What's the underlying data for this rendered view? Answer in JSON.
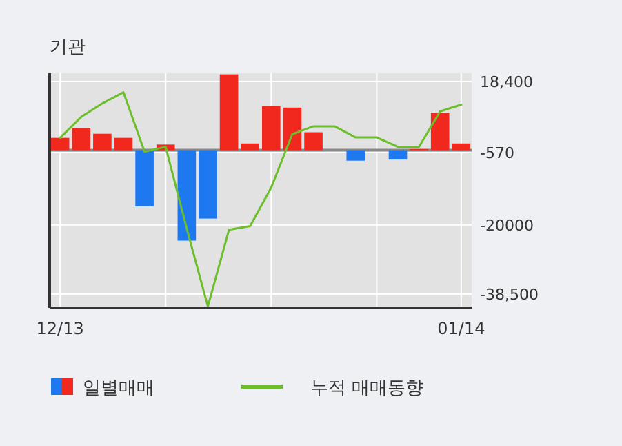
{
  "chart_data": {
    "type": "bar",
    "title": "기관",
    "categories": [
      "12/13",
      null,
      null,
      null,
      null,
      null,
      null,
      null,
      null,
      null,
      null,
      null,
      null,
      null,
      null,
      null,
      null,
      null,
      null,
      "01/14"
    ],
    "series": [
      {
        "name": "일별매매",
        "colors": [
          "#f0281e",
          "#f0281e",
          "#f0281e",
          "#f0281e",
          "#1e78f0",
          "#f0281e",
          "#1e78f0",
          "#1e78f0",
          "#f0281e",
          "#f0281e",
          "#f0281e",
          "#f0281e",
          "#f0281e",
          "#f0281e",
          "#1e78f0",
          "#f0281e",
          "#1e78f0",
          "#f0281e",
          "#f0281e",
          "#f0281e"
        ],
        "values": [
          3300,
          6000,
          4400,
          3300,
          -15000,
          1500,
          -24200,
          -18300,
          20300,
          1800,
          11800,
          11400,
          4800,
          0,
          -2800,
          0,
          -2500,
          300,
          10000,
          1800
        ]
      },
      {
        "name": "누적 매매동향",
        "type": "line",
        "color": "#6cbf2a",
        "values": [
          3300,
          8900,
          12500,
          15500,
          -400,
          900,
          -21000,
          -41800,
          -21300,
          -20300,
          -10000,
          4300,
          6400,
          6400,
          3400,
          3400,
          900,
          900,
          10400,
          12200
        ]
      }
    ],
    "ylim": [
      -42200,
      20600
    ],
    "yticks": [
      {
        "value": 18400,
        "label": "18,400"
      },
      -570,
      -20000,
      {
        "value": -38500,
        "label": "-38,500"
      }
    ],
    "grid": true,
    "legend": "bottom"
  }
}
